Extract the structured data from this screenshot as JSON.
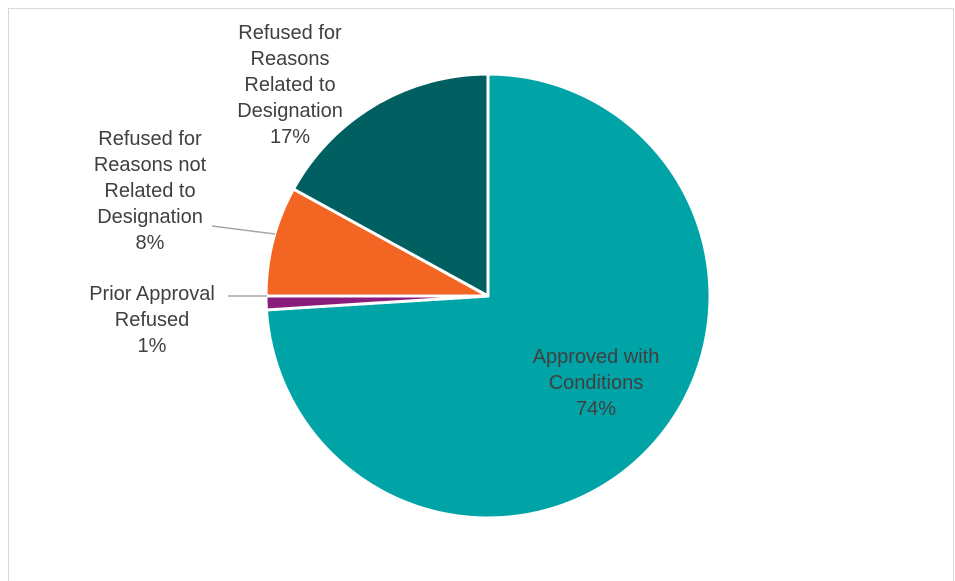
{
  "chart_data": {
    "type": "pie",
    "title": "",
    "slices": [
      {
        "label": "Approved with Conditions",
        "lines": [
          "Approved with",
          "Conditions"
        ],
        "pct_label": "74%",
        "value": 74,
        "color": "#00a3a6"
      },
      {
        "label": "Prior Approval Refused",
        "lines": [
          "Prior Approval",
          "Refused"
        ],
        "pct_label": "1%",
        "value": 1,
        "color": "#8a1c7c"
      },
      {
        "label": "Refused for Reasons not Related to Designation",
        "lines": [
          "Refused for",
          "Reasons not",
          "Related to",
          "Designation"
        ],
        "pct_label": "8%",
        "value": 8,
        "color": "#f26522"
      },
      {
        "label": "Refused for Reasons Related to Designation",
        "lines": [
          "Refused for",
          "Reasons",
          "Related to",
          "Designation"
        ],
        "pct_label": "17%",
        "value": 17,
        "color": "#005f60"
      }
    ],
    "legend": "none"
  }
}
